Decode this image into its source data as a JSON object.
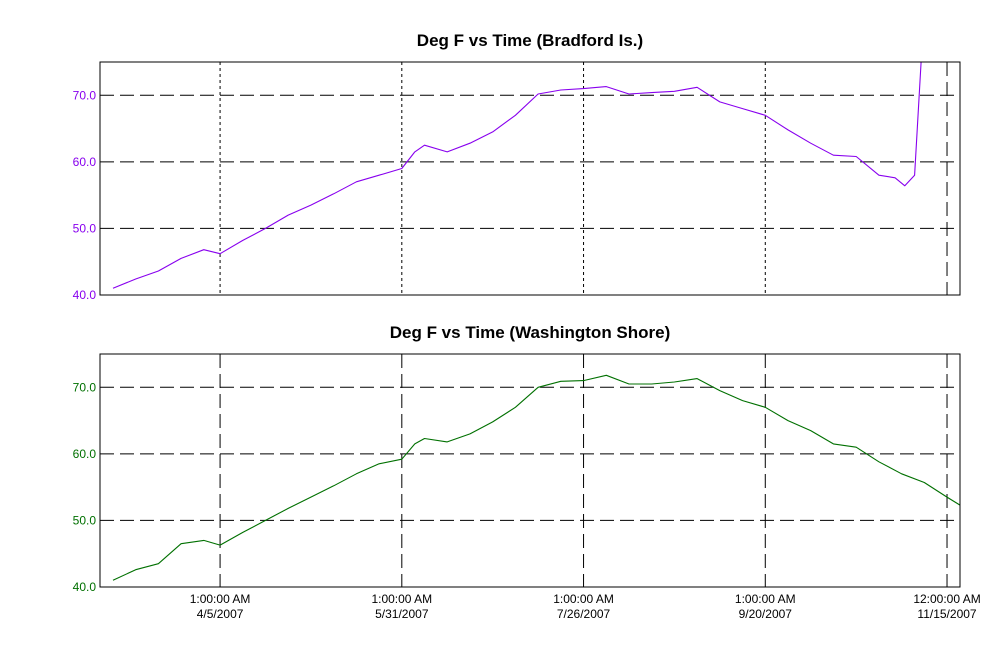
{
  "chart_data": [
    {
      "type": "line",
      "title": "Deg F vs Time (Bradford Is.)",
      "xlabel": "",
      "ylabel": "",
      "color": "#8800ee",
      "ylim": [
        40,
        75
      ],
      "yticks": [
        "40.0",
        "50.0",
        "60.0",
        "70.0"
      ],
      "grid": true,
      "series": [
        {
          "x": [
            "2007-03-03",
            "2007-03-10",
            "2007-03-17",
            "2007-03-24",
            "2007-03-31",
            "2007-04-05",
            "2007-04-12",
            "2007-04-19",
            "2007-04-26",
            "2007-05-03",
            "2007-05-10",
            "2007-05-17",
            "2007-05-24",
            "2007-05-31",
            "2007-06-04",
            "2007-06-07",
            "2007-06-14",
            "2007-06-21",
            "2007-06-28",
            "2007-07-05",
            "2007-07-12",
            "2007-07-19",
            "2007-07-26",
            "2007-08-02",
            "2007-08-09",
            "2007-08-16",
            "2007-08-23",
            "2007-08-30",
            "2007-09-06",
            "2007-09-13",
            "2007-09-20",
            "2007-09-27",
            "2007-10-04",
            "2007-10-11",
            "2007-10-18",
            "2007-10-25",
            "2007-10-30",
            "2007-11-02",
            "2007-11-05",
            "2007-11-07"
          ],
          "values": [
            41.0,
            42.4,
            43.6,
            45.5,
            46.8,
            46.2,
            48.2,
            50.0,
            52.0,
            53.5,
            55.2,
            57.0,
            58.0,
            59.0,
            61.5,
            62.5,
            61.5,
            62.8,
            64.5,
            67.0,
            70.2,
            70.8,
            71.0,
            71.3,
            70.2,
            70.4,
            70.6,
            71.2,
            69.0,
            68.0,
            67.0,
            64.8,
            62.8,
            61.0,
            60.8,
            58.0,
            57.6,
            56.4,
            58.0,
            75.0
          ]
        }
      ]
    },
    {
      "type": "line",
      "title": "Deg F vs Time (Washington Shore)",
      "xlabel": "",
      "ylabel": "",
      "color": "#007000",
      "ylim": [
        40,
        75
      ],
      "yticks": [
        "40.0",
        "50.0",
        "60.0",
        "70.0"
      ],
      "xticks": [
        {
          "x": "2007-04-05",
          "time": "1:00:00 AM",
          "date": "4/5/2007"
        },
        {
          "x": "2007-05-31",
          "time": "1:00:00 AM",
          "date": "5/31/2007"
        },
        {
          "x": "2007-07-26",
          "time": "1:00:00 AM",
          "date": "7/26/2007"
        },
        {
          "x": "2007-09-20",
          "time": "1:00:00 AM",
          "date": "9/20/2007"
        },
        {
          "x": "2007-11-15",
          "time": "12:00:00 AM",
          "date": "11/15/2007"
        }
      ],
      "grid": true,
      "series": [
        {
          "x": [
            "2007-03-03",
            "2007-03-10",
            "2007-03-17",
            "2007-03-24",
            "2007-03-31",
            "2007-04-05",
            "2007-04-12",
            "2007-04-19",
            "2007-04-26",
            "2007-05-03",
            "2007-05-10",
            "2007-05-17",
            "2007-05-24",
            "2007-05-31",
            "2007-06-04",
            "2007-06-07",
            "2007-06-14",
            "2007-06-21",
            "2007-06-28",
            "2007-07-05",
            "2007-07-12",
            "2007-07-19",
            "2007-07-26",
            "2007-08-02",
            "2007-08-09",
            "2007-08-16",
            "2007-08-23",
            "2007-08-30",
            "2007-09-06",
            "2007-09-13",
            "2007-09-20",
            "2007-09-27",
            "2007-10-04",
            "2007-10-11",
            "2007-10-18",
            "2007-10-25",
            "2007-11-01",
            "2007-11-08",
            "2007-11-15",
            "2007-11-19"
          ],
          "values": [
            41.0,
            42.6,
            43.5,
            46.5,
            47.0,
            46.3,
            48.2,
            50.0,
            51.8,
            53.5,
            55.2,
            57.0,
            58.5,
            59.2,
            61.5,
            62.3,
            61.8,
            63.0,
            64.8,
            67.0,
            70.0,
            70.9,
            71.0,
            71.8,
            70.5,
            70.5,
            70.8,
            71.3,
            69.5,
            68.0,
            67.0,
            65.0,
            63.5,
            61.5,
            61.0,
            58.8,
            57.0,
            55.7,
            53.5,
            52.3
          ]
        }
      ]
    }
  ]
}
